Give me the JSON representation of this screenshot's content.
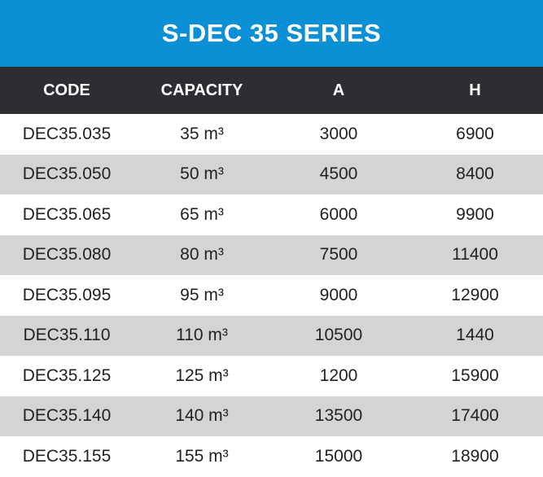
{
  "table": {
    "title": "S-DEC 35 SERIES",
    "columns": [
      "CODE",
      "CAPACITY",
      "A",
      "H"
    ],
    "rows": [
      [
        "DEC35.035",
        "35 m³",
        3000,
        6900
      ],
      [
        "DEC35.050",
        "50 m³",
        4500,
        8400
      ],
      [
        "DEC35.065",
        "65 m³",
        6000,
        9900
      ],
      [
        "DEC35.080",
        "80 m³",
        7500,
        11400
      ],
      [
        "DEC35.095",
        "95 m³",
        9000,
        12900
      ],
      [
        "DEC35.110",
        "110 m³",
        10500,
        1440
      ],
      [
        "DEC35.125",
        "125 m³",
        1200,
        15900
      ],
      [
        "DEC35.140",
        "140 m³",
        13500,
        17400
      ],
      [
        "DEC35.155",
        "155 m³",
        15000,
        18900
      ]
    ]
  }
}
